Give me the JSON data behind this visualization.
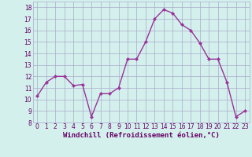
{
  "x": [
    0,
    1,
    2,
    3,
    4,
    5,
    6,
    7,
    8,
    9,
    10,
    11,
    12,
    13,
    14,
    15,
    16,
    17,
    18,
    19,
    20,
    21,
    22,
    23
  ],
  "y": [
    10.3,
    11.5,
    12.0,
    12.0,
    11.2,
    11.3,
    8.5,
    10.5,
    10.5,
    11.0,
    13.5,
    13.5,
    15.0,
    17.0,
    17.8,
    17.5,
    16.5,
    16.0,
    14.9,
    13.5,
    13.5,
    11.5,
    8.5,
    9.0
  ],
  "line_color": "#993399",
  "marker": "D",
  "marker_size": 2.2,
  "bg_color": "#d4f0ec",
  "grid_color": "#aaaacc",
  "xlabel": "Windchill (Refroidissement éolien,°C)",
  "ylabel_ticks": [
    8,
    9,
    10,
    11,
    12,
    13,
    14,
    15,
    16,
    17,
    18
  ],
  "xlim": [
    -0.5,
    23.5
  ],
  "ylim": [
    8,
    18.5
  ],
  "xtick_labels": [
    "0",
    "1",
    "2",
    "3",
    "4",
    "5",
    "6",
    "7",
    "8",
    "9",
    "10",
    "11",
    "12",
    "13",
    "14",
    "15",
    "16",
    "17",
    "18",
    "19",
    "20",
    "21",
    "22",
    "23"
  ],
  "line_width": 1.0,
  "marker_color": "#993399",
  "tick_fontsize": 5.5,
  "xlabel_fontsize": 6.5
}
